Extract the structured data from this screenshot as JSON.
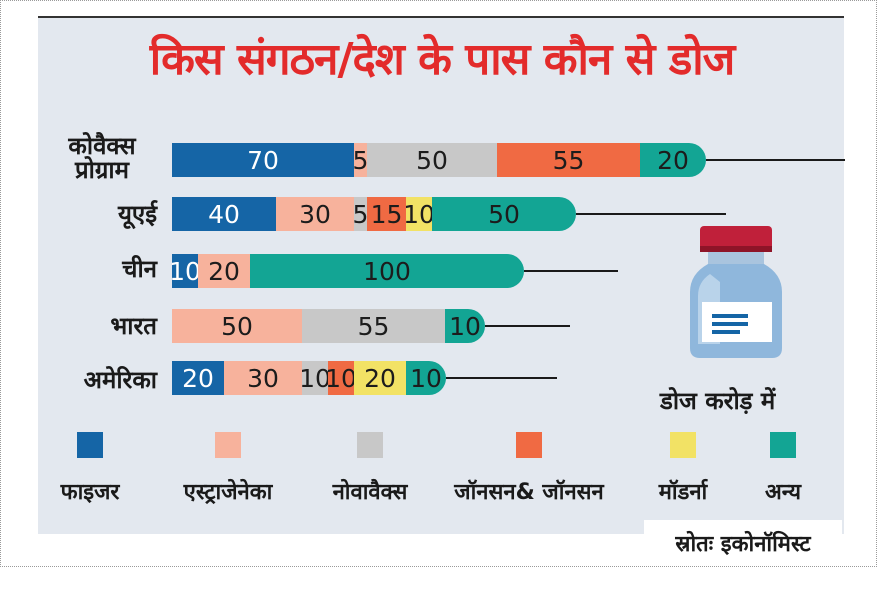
{
  "chart_data": {
    "type": "bar",
    "orientation": "horizontal",
    "stacked": true,
    "title": "किस संगठन/देश के पास कौन से डोज",
    "unit_label": "डोज करोड़ में",
    "source": "स्रोतः इकोनॉमिस्ट",
    "categories": [
      "कोवैक्स प्रोग्राम",
      "यूएई",
      "चीन",
      "भारत",
      "अमेरिका"
    ],
    "series": [
      {
        "name": "फाइजर",
        "color": "#1565a6",
        "values": [
          70,
          40,
          10,
          0,
          20
        ]
      },
      {
        "name": "एस्ट्राजेनेका",
        "color": "#f7b29c",
        "values": [
          5,
          30,
          20,
          50,
          30
        ]
      },
      {
        "name": "नोवावैक्स",
        "color": "#c8c8c8",
        "values": [
          50,
          5,
          0,
          55,
          10
        ]
      },
      {
        "name": "जॉनसन& जॉनसन",
        "color": "#f06a43",
        "values": [
          55,
          15,
          0,
          0,
          10
        ]
      },
      {
        "name": "मॉडर्ना",
        "color": "#f2e265",
        "values": [
          0,
          10,
          0,
          0,
          20
        ]
      },
      {
        "name": "अन्य",
        "color": "#13a594",
        "values": [
          20,
          50,
          100,
          10,
          10
        ]
      }
    ],
    "legend_position": "bottom",
    "grid": false
  }
}
